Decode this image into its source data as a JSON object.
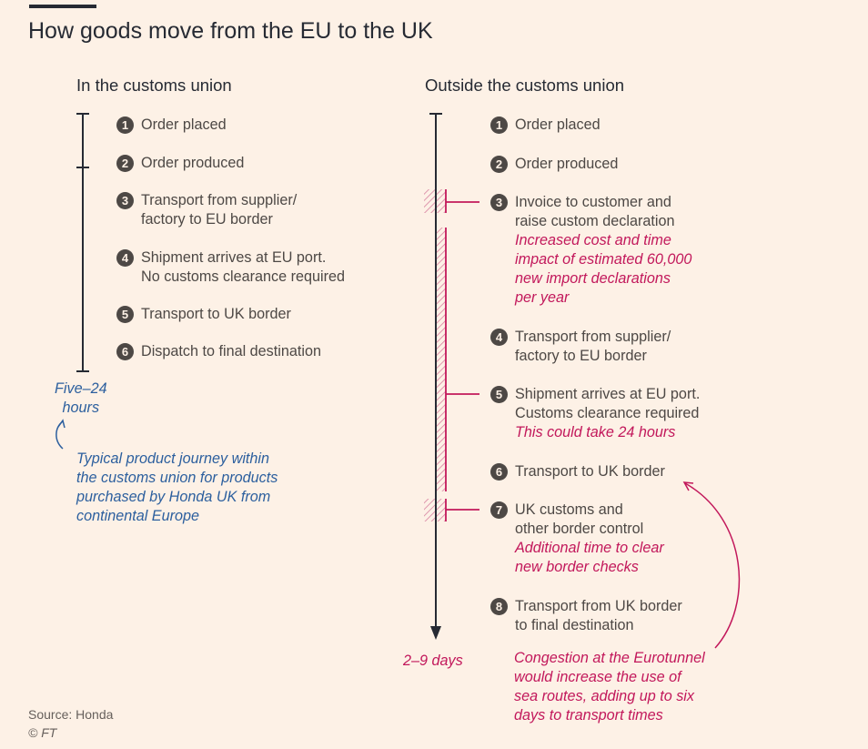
{
  "title": "How goods move from the EU to the UK",
  "left": {
    "heading": "In the customs union",
    "steps": [
      {
        "num": "1",
        "lines": [
          "Order placed"
        ]
      },
      {
        "num": "2",
        "lines": [
          "Order produced"
        ]
      },
      {
        "num": "3",
        "lines": [
          "Transport from supplier/",
          "factory to EU border"
        ]
      },
      {
        "num": "4",
        "lines": [
          "Shipment arrives at EU port.",
          "No customs clearance required"
        ]
      },
      {
        "num": "5",
        "lines": [
          "Transport to UK border"
        ]
      },
      {
        "num": "6",
        "lines": [
          "Dispatch to final destination"
        ]
      }
    ],
    "duration": [
      "Five–24",
      "hours"
    ],
    "annotation": [
      "Typical product journey within",
      "the customs union for products",
      "purchased by Honda UK from",
      "continental Europe"
    ]
  },
  "right": {
    "heading": "Outside the customs union",
    "steps": [
      {
        "num": "1",
        "lines": [
          "Order placed"
        ],
        "notes": []
      },
      {
        "num": "2",
        "lines": [
          "Order produced"
        ],
        "notes": []
      },
      {
        "num": "3",
        "lines": [
          "Invoice to customer and",
          "raise custom declaration"
        ],
        "notes": [
          "Increased cost and time",
          "impact of estimated 60,000",
          "new import declarations",
          "per year"
        ]
      },
      {
        "num": "4",
        "lines": [
          "Transport from supplier/",
          "factory to EU border"
        ],
        "notes": []
      },
      {
        "num": "5",
        "lines": [
          "Shipment arrives at EU port.",
          "Customs clearance required"
        ],
        "notes": [
          "This could take 24 hours"
        ]
      },
      {
        "num": "6",
        "lines": [
          "Transport to UK border"
        ],
        "notes": []
      },
      {
        "num": "7",
        "lines": [
          "UK customs and",
          "other border control"
        ],
        "notes": [
          "Additional time to clear",
          "new border checks"
        ]
      },
      {
        "num": "8",
        "lines": [
          "Transport from UK border",
          "to final destination"
        ],
        "notes": []
      }
    ],
    "duration": "2–9 days",
    "annotation": [
      "Congestion at the Eurotunnel",
      "would increase the use of",
      "sea routes, adding up to six",
      "days to transport times"
    ]
  },
  "source": {
    "line1": "Source: Honda",
    "line2": "© FT"
  },
  "colors": {
    "background": "#fdf1e6",
    "text": "#4d4845",
    "accent_pink": "#c2185b",
    "accent_blue": "#2c5f9e",
    "line": "#262a33"
  }
}
